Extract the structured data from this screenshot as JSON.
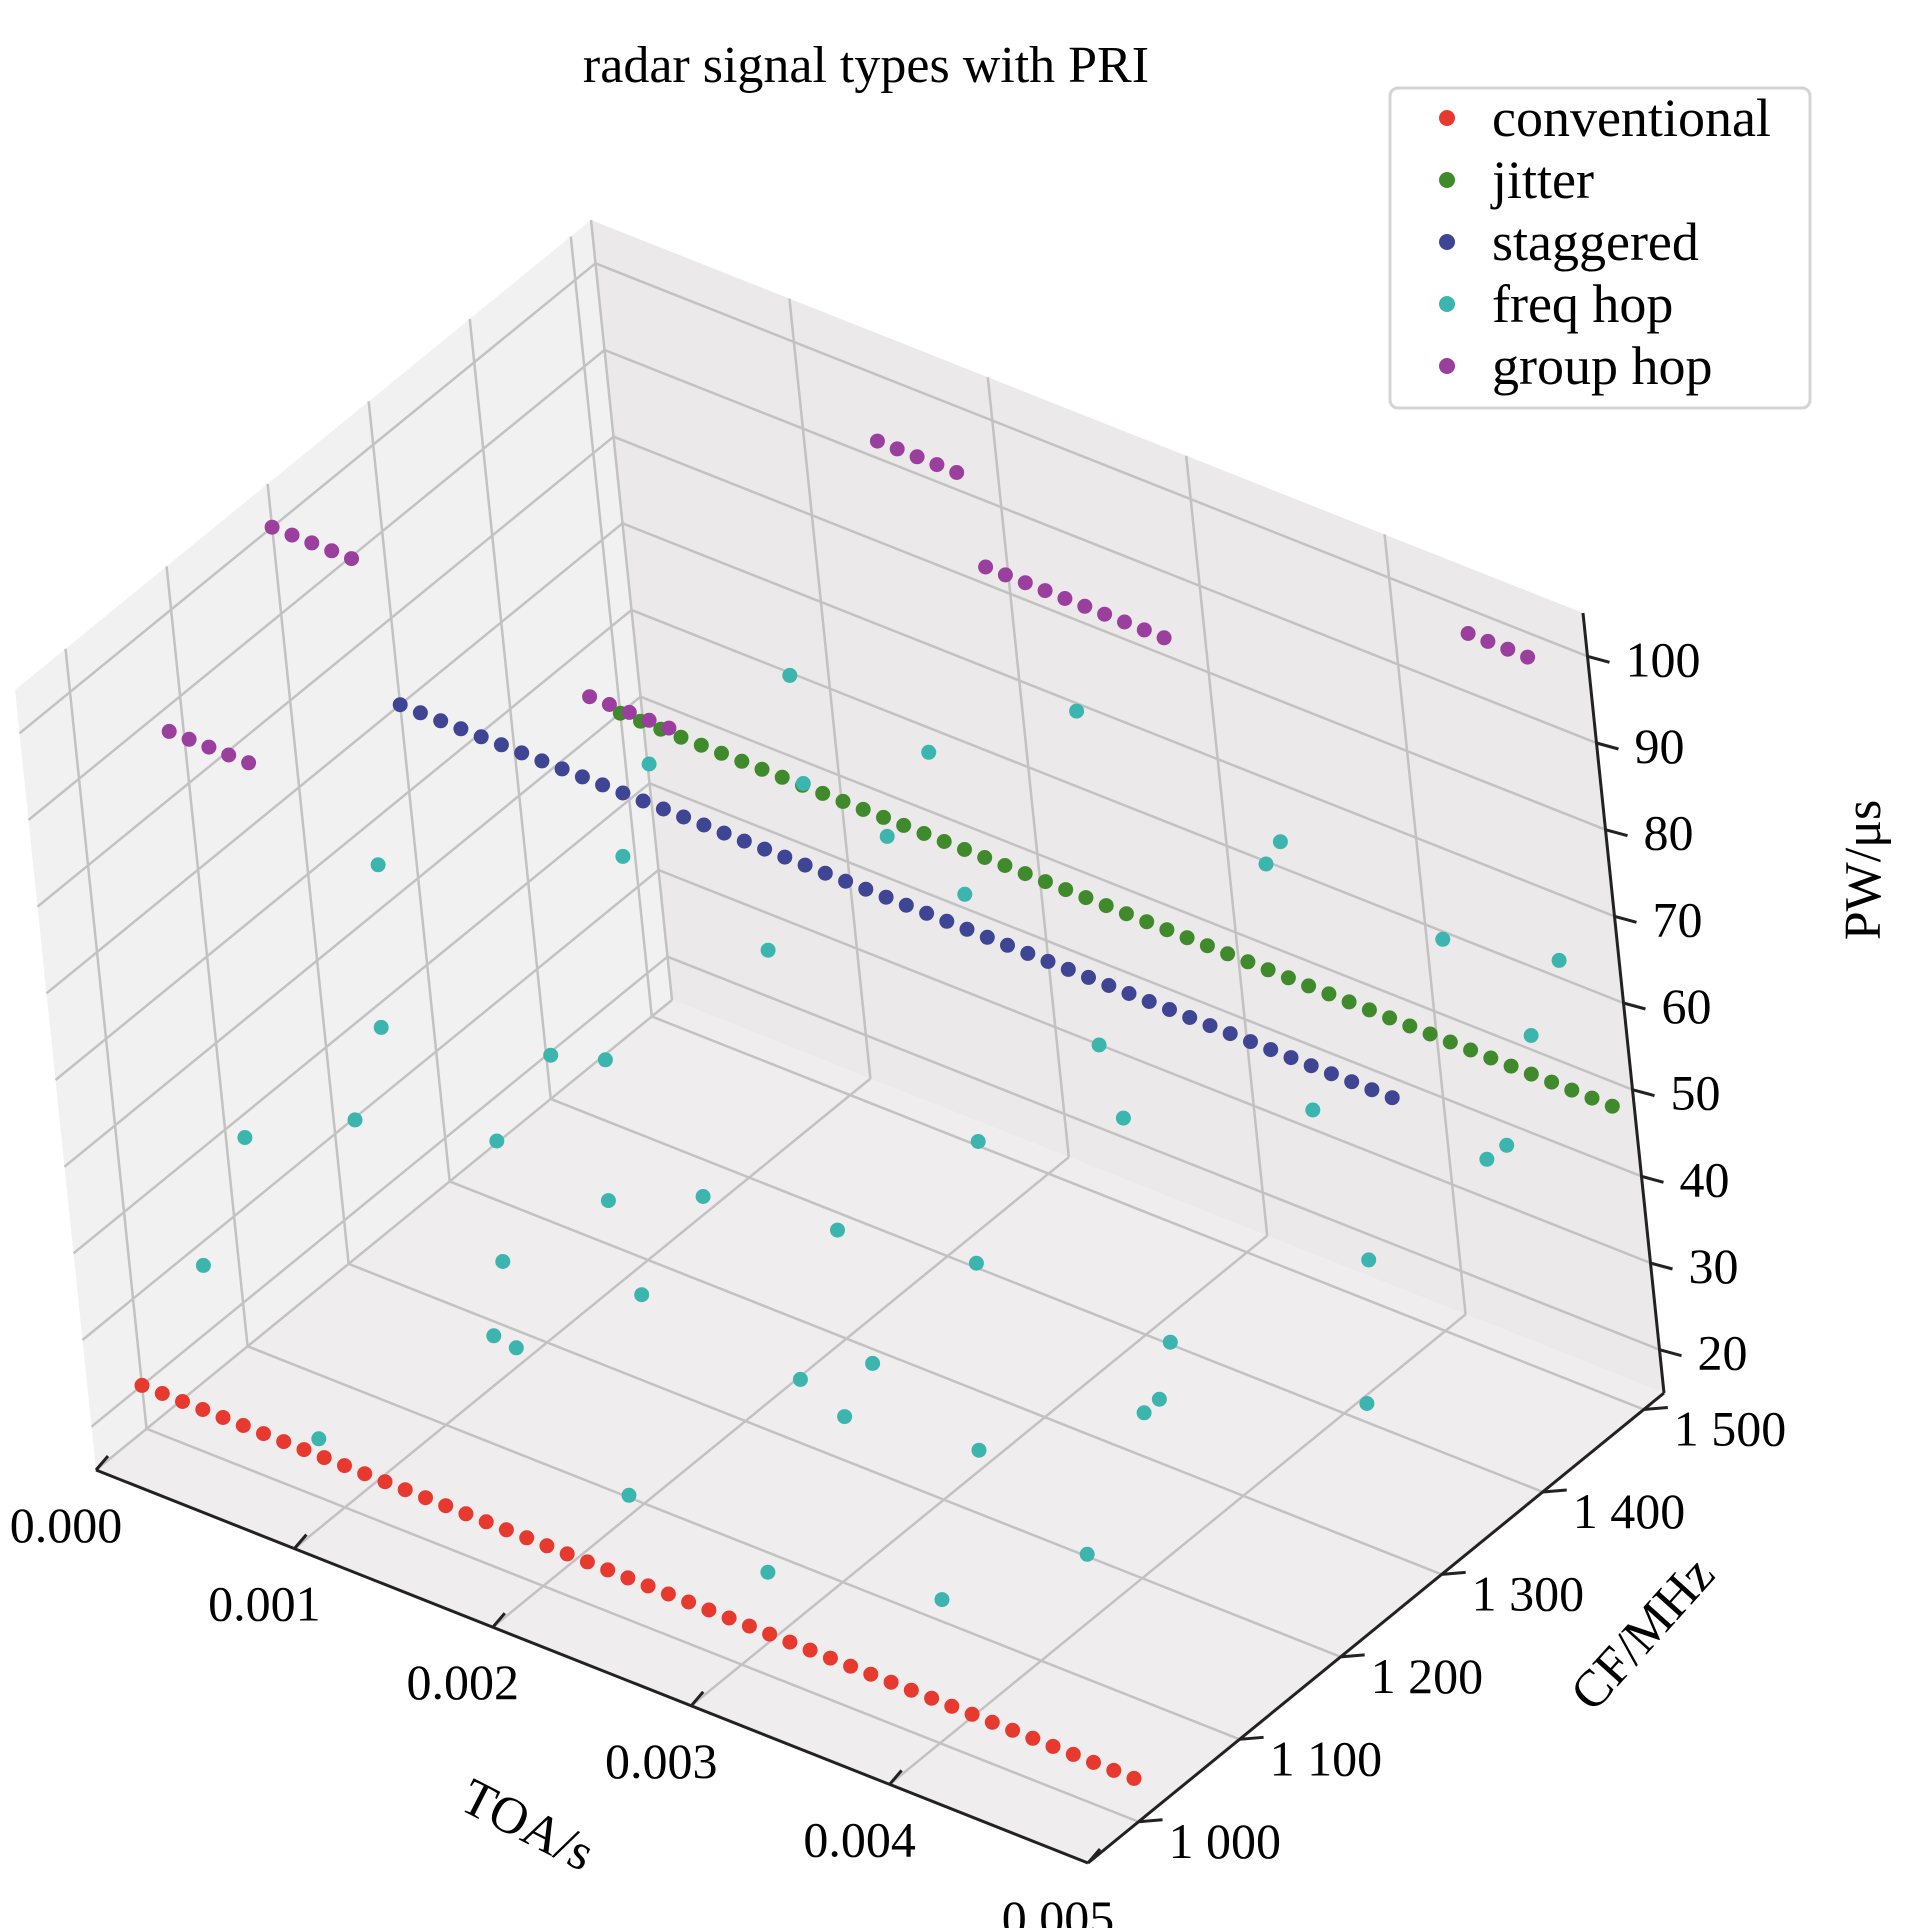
{
  "chart_data": {
    "type": "scatter",
    "projection": "3d",
    "title": "radar signal types with PRI",
    "xlabel": "TOA/s",
    "ylabel": "CF/MHz",
    "zlabel": "PW/μs",
    "xlim": [
      0.0,
      0.005
    ],
    "ylim": [
      950,
      1520
    ],
    "zlim": [
      15,
      105
    ],
    "x_ticks": [
      "0.000",
      "0.001",
      "0.002",
      "0.003",
      "0.004",
      "0.005"
    ],
    "y_ticks": [
      "1 000",
      "1 100",
      "1 200",
      "1 300",
      "1 400",
      "1 500"
    ],
    "z_ticks": [
      "20",
      "30",
      "40",
      "50",
      "60",
      "70",
      "80",
      "90",
      "100"
    ],
    "grid": true,
    "legend_position": "top-right",
    "colors": {
      "conventional": "#e8392f",
      "jitter": "#3f8a2a",
      "staggered": "#3d4594",
      "freq_hop": "#3cb5ae",
      "group_hop": "#9a3f9e",
      "pane": "#efeded",
      "grid": "#c2c2c2"
    },
    "series": [
      {
        "name": "conventional",
        "color": "#e8392f",
        "pattern": "constant",
        "x_start": 0.0,
        "x_end": 0.005,
        "count": 50,
        "y": 1000,
        "z": 20
      },
      {
        "name": "jitter",
        "color": "#3f8a2a",
        "pattern": "constant",
        "x_start": 0.0,
        "x_end": 0.005,
        "count": 50,
        "y": 1500,
        "z": 50
      },
      {
        "name": "staggered",
        "color": "#3d4594",
        "pattern": "constant",
        "x_start": 0.0,
        "x_end": 0.005,
        "count": 50,
        "y": 1300,
        "z": 70
      },
      {
        "name": "freq hop",
        "color": "#3cb5ae",
        "points": [
          [
            0.0001,
            1100,
            40
          ],
          [
            0.0001,
            1050,
            30
          ],
          [
            0.0002,
            1230,
            60
          ],
          [
            0.0003,
            1200,
            45
          ],
          [
            0.0004,
            1150,
            40
          ],
          [
            0.0005,
            1260,
            28
          ],
          [
            0.0006,
            1300,
            35
          ],
          [
            0.0007,
            1400,
            60
          ],
          [
            0.0008,
            1350,
            55
          ],
          [
            0.0009,
            1000,
            22
          ],
          [
            0.001,
            1280,
            40
          ],
          [
            0.0011,
            1150,
            30
          ],
          [
            0.0012,
            1450,
            70
          ],
          [
            0.0013,
            1100,
            28
          ],
          [
            0.0014,
            1200,
            35
          ],
          [
            0.0015,
            1400,
            65
          ],
          [
            0.0016,
            1500,
            60
          ],
          [
            0.0017,
            1050,
            35
          ],
          [
            0.0018,
            1300,
            58
          ],
          [
            0.0019,
            1200,
            40
          ],
          [
            0.002,
            1450,
            52
          ],
          [
            0.0021,
            1100,
            40
          ],
          [
            0.0022,
            1350,
            70
          ],
          [
            0.0023,
            1250,
            35
          ],
          [
            0.0024,
            1500,
            72
          ],
          [
            0.0025,
            1000,
            30
          ],
          [
            0.0026,
            1150,
            30
          ],
          [
            0.0027,
            1200,
            28
          ],
          [
            0.0028,
            1300,
            45
          ],
          [
            0.0029,
            1050,
            20
          ],
          [
            0.003,
            1400,
            40
          ],
          [
            0.0031,
            1100,
            35
          ],
          [
            0.0032,
            1350,
            55
          ],
          [
            0.0033,
            1200,
            45
          ],
          [
            0.0034,
            1500,
            66
          ],
          [
            0.0035,
            1150,
            30
          ],
          [
            0.0036,
            1450,
            70
          ],
          [
            0.0037,
            1300,
            30
          ],
          [
            0.0038,
            1050,
            25
          ],
          [
            0.0039,
            1250,
            30
          ],
          [
            0.004,
            1400,
            50
          ],
          [
            0.0041,
            1200,
            35
          ],
          [
            0.0042,
            1500,
            62
          ],
          [
            0.0043,
            1100,
            30
          ],
          [
            0.0045,
            1350,
            42
          ],
          [
            0.0046,
            1450,
            45
          ],
          [
            0.0047,
            1300,
            32
          ],
          [
            0.0048,
            1500,
            65
          ],
          [
            0.0049,
            1450,
            62
          ],
          [
            0.005,
            1400,
            55
          ]
        ]
      },
      {
        "name": "group hop",
        "color": "#9a3f9e",
        "points": [
          [
            0.0,
            1200,
            100
          ],
          [
            0.0001,
            1200,
            100
          ],
          [
            0.0002,
            1200,
            100
          ],
          [
            0.0003,
            1200,
            100
          ],
          [
            0.0004,
            1200,
            100
          ],
          [
            0.0005,
            1000,
            100
          ],
          [
            0.0006,
            1000,
            100
          ],
          [
            0.0007,
            1000,
            100
          ],
          [
            0.0008,
            1000,
            100
          ],
          [
            0.0009,
            1000,
            100
          ],
          [
            0.001,
            1300,
            80
          ],
          [
            0.0011,
            1300,
            80
          ],
          [
            0.0012,
            1300,
            80
          ],
          [
            0.0013,
            1300,
            80
          ],
          [
            0.0014,
            1300,
            80
          ],
          [
            0.0015,
            1500,
            95
          ],
          [
            0.0016,
            1500,
            95
          ],
          [
            0.0017,
            1500,
            95
          ],
          [
            0.0018,
            1500,
            95
          ],
          [
            0.0019,
            1500,
            95
          ],
          [
            0.002,
            1500,
            85
          ],
          [
            0.0021,
            1500,
            85
          ],
          [
            0.0022,
            1500,
            85
          ],
          [
            0.0023,
            1500,
            85
          ],
          [
            0.0024,
            1500,
            85
          ],
          [
            0.0025,
            1500,
            85
          ],
          [
            0.0026,
            1500,
            85
          ],
          [
            0.0027,
            1500,
            85
          ],
          [
            0.0028,
            1500,
            85
          ],
          [
            0.0029,
            1500,
            85
          ],
          [
            0.0045,
            1500,
            100
          ],
          [
            0.0046,
            1500,
            100
          ],
          [
            0.0047,
            1500,
            100
          ],
          [
            0.0048,
            1500,
            100
          ]
        ]
      }
    ]
  }
}
